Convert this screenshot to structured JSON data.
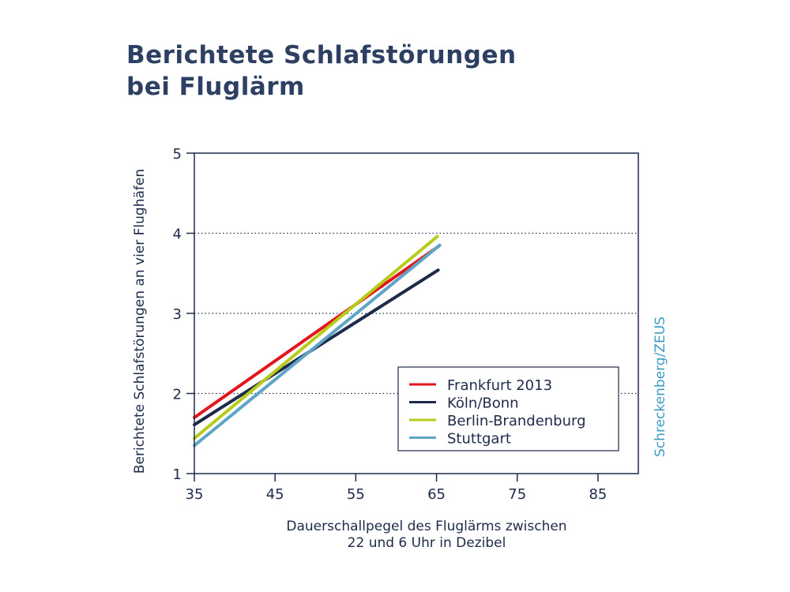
{
  "title": [
    "Berichtete Schlafstörungen",
    "bei Fluglärm"
  ],
  "credit": "Schreckenberg/ZEUS",
  "colors": {
    "axis": "#1e2a4a",
    "credit": "#3d9cc4"
  },
  "chart_data": {
    "type": "line",
    "title": "Berichtete Schlafstörungen bei Fluglärm",
    "xlabel": [
      "Dauerschallpegel des Fluglärms zwischen",
      "22 und 6 Uhr in Dezibel"
    ],
    "ylabel": "Berichtete Schlafstörungen an vier Flughäfen",
    "xlim": [
      35,
      90
    ],
    "ylim": [
      1,
      5
    ],
    "xticks": [
      "35",
      "45",
      "55",
      "65",
      "75",
      "85"
    ],
    "yticks": [
      "1",
      "2",
      "3",
      "4",
      "5"
    ],
    "grid": "horizontal dotted",
    "legend_position": "bottom-right",
    "series": [
      {
        "name": "Frankfurt 2013",
        "color": "#e3161d",
        "x": [
          35,
          65.3
        ],
        "y": [
          1.7,
          3.84
        ]
      },
      {
        "name": "Köln/Bonn",
        "color": "#1e2a4a",
        "x": [
          35,
          65.2
        ],
        "y": [
          1.61,
          3.54
        ]
      },
      {
        "name": "Berlin-Brandenburg",
        "color": "#b7cc1a",
        "x": [
          35,
          65.1
        ],
        "y": [
          1.44,
          3.96
        ]
      },
      {
        "name": "Stuttgart",
        "color": "#5fa5c6",
        "x": [
          35,
          65.4
        ],
        "y": [
          1.35,
          3.85
        ]
      }
    ]
  }
}
